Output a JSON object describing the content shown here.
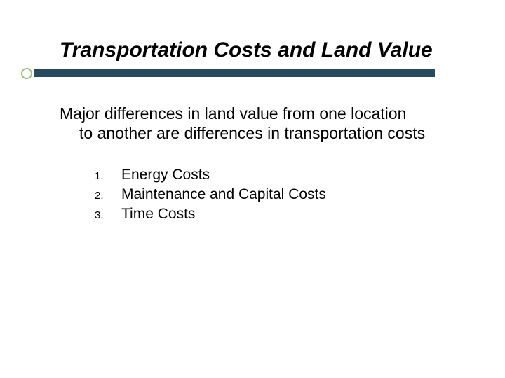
{
  "title": "Transportation Costs and Land Value",
  "body_first": "Major differences in land value from one location",
  "body_rest": "to another are differences in transportation costs",
  "items": [
    {
      "num": "1.",
      "label": "Energy Costs"
    },
    {
      "num": "2.",
      "label": "Maintenance and Capital Costs"
    },
    {
      "num": "3.",
      "label": "Time Costs"
    }
  ],
  "colors": {
    "rule": "#28495f",
    "bullet_ring": "#9bbf7a",
    "text": "#000000",
    "background": "#ffffff"
  },
  "typography": {
    "title_fontsize": 30,
    "body_fontsize": 23,
    "list_num_fontsize": 15,
    "list_label_fontsize": 21,
    "title_weight": "bold",
    "title_style": "italic"
  }
}
